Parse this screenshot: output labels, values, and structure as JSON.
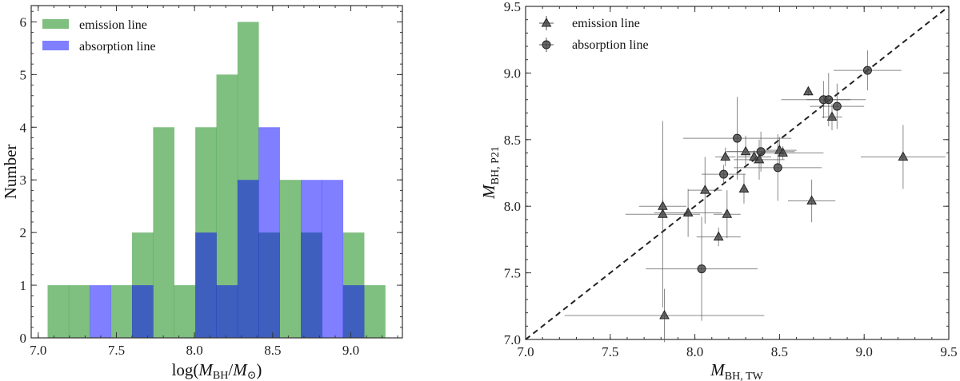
{
  "chart_data": [
    {
      "type": "bar",
      "subtype": "histogram-overlay",
      "xlabel": {
        "prefix": "log(",
        "var1": "M",
        "sub1": "BH",
        "sep": "/",
        "var2": "M",
        "sub2": "⊙",
        "suffix": ")"
      },
      "ylabel": "Number",
      "xlim": [
        6.955,
        9.33
      ],
      "ylim": [
        0,
        6.31
      ],
      "xticks": [
        "7.0",
        "7.5",
        "8.0",
        "8.5",
        "9.0"
      ],
      "yticks": [
        "0",
        "1",
        "2",
        "3",
        "4",
        "5",
        "6"
      ],
      "legend_position": "top-left",
      "bin_edges": [
        7.06,
        7.195,
        7.33,
        7.465,
        7.6,
        7.735,
        7.87,
        8.005,
        8.14,
        8.275,
        8.41,
        8.545,
        8.68,
        8.815,
        8.95,
        9.085,
        9.22
      ],
      "series": [
        {
          "name": "emission line",
          "color": "#008000",
          "opacity": 0.5,
          "values": [
            1,
            1,
            0,
            1,
            2,
            4,
            1,
            4,
            5,
            6,
            2,
            3,
            2,
            0,
            2,
            1
          ]
        },
        {
          "name": "absorption line",
          "color": "#0000ff",
          "opacity": 0.5,
          "values": [
            0,
            0,
            1,
            0,
            1,
            0,
            0,
            2,
            1,
            3,
            4,
            0,
            3,
            3,
            1,
            0
          ]
        }
      ]
    },
    {
      "type": "scatter",
      "xlabel": {
        "var": "M",
        "sub": "BH, TW"
      },
      "ylabel": {
        "var": "M",
        "sub": "BH, P21"
      },
      "xlim": [
        7.0,
        9.5
      ],
      "ylim": [
        7.0,
        9.5
      ],
      "xticks": [
        "7.0",
        "7.5",
        "8.0",
        "8.5",
        "9.0",
        "9.5"
      ],
      "yticks": [
        "7.0",
        "7.5",
        "8.0",
        "8.5",
        "9.0",
        "9.5"
      ],
      "legend_position": "top-left",
      "reference_line": {
        "style": "dashed",
        "slope": 1,
        "intercept": 0,
        "color": "#222222"
      },
      "marker_color": "#444444",
      "series": [
        {
          "name": "emission line",
          "marker": "triangle",
          "points": [
            {
              "x": 8.67,
              "y": 8.86,
              "xerr": 0.02,
              "yerr": 0.03
            },
            {
              "x": 8.81,
              "y": 8.67,
              "xerr": 0.06,
              "yerr": 0.1
            },
            {
              "x": 9.23,
              "y": 8.37,
              "xerr": 0.25,
              "yerr": 0.24
            },
            {
              "x": 8.18,
              "y": 8.37,
              "xerr": 0.06,
              "yerr": 0.07
            },
            {
              "x": 8.3,
              "y": 8.41,
              "xerr": 0.12,
              "yerr": 0.12
            },
            {
              "x": 8.35,
              "y": 8.37,
              "xerr": 0.1,
              "yerr": 0.05
            },
            {
              "x": 8.38,
              "y": 8.35,
              "xerr": 0.15,
              "yerr": 0.15
            },
            {
              "x": 8.5,
              "y": 8.42,
              "xerr": 0.1,
              "yerr": 0.1
            },
            {
              "x": 8.52,
              "y": 8.4,
              "xerr": 0.24,
              "yerr": 0.05
            },
            {
              "x": 8.06,
              "y": 8.12,
              "xerr": 0.1,
              "yerr": 0.25
            },
            {
              "x": 8.29,
              "y": 8.13,
              "xerr": 0.02,
              "yerr": 0.11
            },
            {
              "x": 7.81,
              "y": 8.0,
              "xerr": 0.14,
              "yerr": 0.05
            },
            {
              "x": 7.81,
              "y": 7.94,
              "xerr": 0.22,
              "yerr": 0.7
            },
            {
              "x": 7.96,
              "y": 7.95,
              "xerr": 0.2,
              "yerr": 0.18
            },
            {
              "x": 8.19,
              "y": 7.94,
              "xerr": 0.08,
              "yerr": 0.18
            },
            {
              "x": 8.14,
              "y": 7.77,
              "xerr": 0.13,
              "yerr": 0.07
            },
            {
              "x": 8.69,
              "y": 8.04,
              "xerr": 0.14,
              "yerr": 0.16
            },
            {
              "x": 7.82,
              "y": 7.18,
              "xerr": 0.59,
              "yerr": 0.2
            }
          ]
        },
        {
          "name": "absorption line",
          "marker": "circle",
          "points": [
            {
              "x": 8.25,
              "y": 8.51,
              "xerr": 0.32,
              "yerr": 0.31
            },
            {
              "x": 8.39,
              "y": 8.41,
              "xerr": 0.2,
              "yerr": 0.15
            },
            {
              "x": 8.17,
              "y": 8.24,
              "xerr": 0.13,
              "yerr": 0.07
            },
            {
              "x": 8.49,
              "y": 8.29,
              "xerr": 0.26,
              "yerr": 0.25
            },
            {
              "x": 8.04,
              "y": 7.53,
              "xerr": 0.33,
              "yerr": 0.39
            },
            {
              "x": 8.76,
              "y": 8.8,
              "xerr": 0.25,
              "yerr": 0.14
            },
            {
              "x": 8.79,
              "y": 8.8,
              "xerr": 0.13,
              "yerr": 0.2
            },
            {
              "x": 8.84,
              "y": 8.75,
              "xerr": 0.16,
              "yerr": 0.17
            },
            {
              "x": 9.02,
              "y": 9.02,
              "xerr": 0.2,
              "yerr": 0.15
            }
          ]
        }
      ]
    }
  ]
}
